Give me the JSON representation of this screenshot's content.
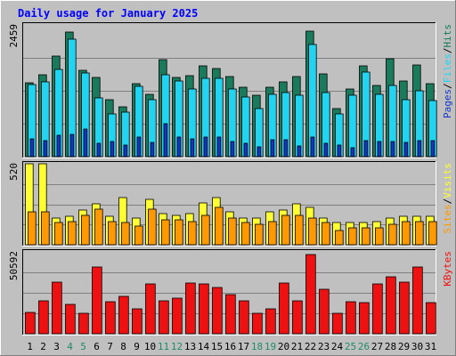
{
  "chart_data": [
    {
      "type": "bar",
      "title": "Daily usage for January 2025",
      "panel": "hits-files-pages",
      "ylabel_parts": [
        "Pages",
        "/",
        "Files",
        "/",
        "Hits"
      ],
      "ytick_top": "2459",
      "ylim": [
        0,
        2459
      ],
      "categories": [
        "1",
        "2",
        "3",
        "4",
        "5",
        "6",
        "7",
        "8",
        "9",
        "10",
        "11",
        "12",
        "13",
        "14",
        "15",
        "16",
        "17",
        "18",
        "19",
        "20",
        "21",
        "22",
        "23",
        "24",
        "25",
        "26",
        "27",
        "28",
        "29",
        "30",
        "31"
      ],
      "weekend_days": [
        "4",
        "5",
        "11",
        "12",
        "18",
        "19",
        "25",
        "26"
      ],
      "series": [
        {
          "name": "Hits",
          "color": "#1a7a5c",
          "values": [
            1380,
            1530,
            1870,
            2330,
            1610,
            1480,
            1070,
            930,
            1370,
            1170,
            1810,
            1480,
            1520,
            1690,
            1640,
            1500,
            1300,
            1150,
            1290,
            1400,
            1500,
            2350,
            1540,
            900,
            1270,
            1700,
            1330,
            1820,
            1410,
            1710,
            1360
          ]
        },
        {
          "name": "Files",
          "color": "#22d4f0",
          "values": [
            1350,
            1390,
            1630,
            2200,
            1560,
            1100,
            800,
            830,
            1310,
            1070,
            1530,
            1410,
            1270,
            1460,
            1460,
            1270,
            1110,
            900,
            1170,
            1190,
            1150,
            2090,
            1190,
            800,
            1150,
            1580,
            1160,
            1330,
            1070,
            1230,
            1040
          ]
        },
        {
          "name": "Pages",
          "color": "#1435c8",
          "values": [
            330,
            300,
            400,
            410,
            520,
            250,
            280,
            210,
            370,
            260,
            610,
            360,
            330,
            370,
            360,
            280,
            250,
            180,
            320,
            320,
            200,
            370,
            250,
            220,
            170,
            300,
            290,
            280,
            270,
            300,
            300
          ]
        }
      ]
    },
    {
      "type": "bar",
      "panel": "visits-sites",
      "ylabel_parts": [
        "Sites",
        "/",
        "Visits"
      ],
      "ytick_top": "520",
      "ylim": [
        0,
        520
      ],
      "categories": [
        "1",
        "2",
        "3",
        "4",
        "5",
        "6",
        "7",
        "8",
        "9",
        "10",
        "11",
        "12",
        "13",
        "14",
        "15",
        "16",
        "17",
        "18",
        "19",
        "20",
        "21",
        "22",
        "23",
        "24",
        "25",
        "26",
        "27",
        "28",
        "29",
        "30",
        "31"
      ],
      "series": [
        {
          "name": "Visits",
          "color": "#ffff33",
          "values": [
            520,
            520,
            170,
            180,
            220,
            260,
            180,
            300,
            170,
            290,
            200,
            190,
            200,
            270,
            300,
            210,
            170,
            170,
            210,
            220,
            260,
            240,
            170,
            140,
            140,
            140,
            150,
            170,
            180,
            180,
            180
          ]
        },
        {
          "name": "Sites",
          "color": "#ff9900",
          "values": [
            210,
            210,
            140,
            150,
            190,
            230,
            150,
            140,
            120,
            230,
            160,
            160,
            150,
            190,
            240,
            170,
            140,
            130,
            150,
            190,
            190,
            170,
            140,
            90,
            110,
            110,
            110,
            130,
            150,
            150,
            150
          ]
        }
      ]
    },
    {
      "type": "bar",
      "panel": "kbytes",
      "ylabel_parts": [
        "KBytes"
      ],
      "ytick_top": "50592",
      "ylim": [
        0,
        50592
      ],
      "categories": [
        "1",
        "2",
        "3",
        "4",
        "5",
        "6",
        "7",
        "8",
        "9",
        "10",
        "11",
        "12",
        "13",
        "14",
        "15",
        "16",
        "17",
        "18",
        "19",
        "20",
        "21",
        "22",
        "23",
        "24",
        "25",
        "26",
        "27",
        "28",
        "29",
        "30",
        "31"
      ],
      "series": [
        {
          "name": "KBytes",
          "color": "#ee1111",
          "values": [
            13400,
            20300,
            32000,
            18400,
            12500,
            41000,
            20000,
            23300,
            15200,
            31000,
            20300,
            21800,
            31500,
            30800,
            28800,
            24300,
            20200,
            12600,
            15500,
            31200,
            20200,
            48800,
            27500,
            12700,
            19700,
            19000,
            30600,
            35000,
            31900,
            41400,
            19400
          ]
        }
      ]
    }
  ],
  "colors": {
    "background": "#c0c0c0",
    "plot_background": "#c0c0c0",
    "title": "#0000ff",
    "axis_text": "#000000",
    "weekend_text": "#228b66",
    "grid": "#808080"
  }
}
